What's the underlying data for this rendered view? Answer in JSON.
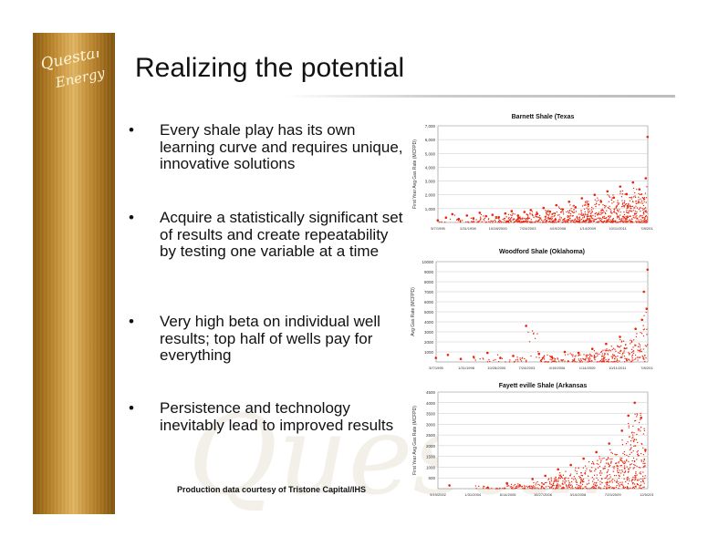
{
  "slide": {
    "title": "Realizing the potential",
    "logo_text": [
      "Questar",
      "Energy"
    ],
    "watermark": "Questar",
    "bullets": [
      {
        "symbol": "•",
        "text": "Every shale play has its own learning curve and requires unique, innovative solutions"
      },
      {
        "symbol": "•",
        "text": "Acquire a statistically significant set of results and create repeatability by testing one variable at a time"
      },
      {
        "symbol": "•",
        "text": "Very high beta on individual well results; top half of wells pay for everything"
      },
      {
        "symbol": "•",
        "text": "Persistence and technology inevitably lead to improved results"
      }
    ],
    "source": "Production data courtesy of Tristone Capital/IHS"
  },
  "colors": {
    "points": "#e8250c",
    "grid": "#c8c8c8",
    "sidebar_gold": "#c9953d"
  },
  "chart_data": [
    {
      "type": "scatter",
      "title": "Barnett   Shale (Texas",
      "xlabel": "",
      "ylabel": "First Year Avg Gas Rate (MCFPD)",
      "ylim": [
        0,
        7000
      ],
      "yticks": [
        "1,000",
        "2,000",
        "3,000",
        "4,000",
        "5,000",
        "6,000",
        "7,000"
      ],
      "xticks": [
        "5/7/1995",
        "1/31/1998",
        "10/28/2000",
        "7/24/2003",
        "4/19/2006",
        "1/14/2009",
        "10/11/2011",
        "7/8/2014"
      ],
      "grid": true,
      "legend": "none",
      "series": [
        {
          "points": [
            [
              "5/1995",
              150
            ],
            [
              "2/1996",
              350
            ],
            [
              "9/1996",
              600
            ],
            [
              "4/1997",
              250
            ],
            [
              "1/1998",
              500
            ],
            [
              "8/1998",
              300
            ],
            [
              "3/1999",
              700
            ],
            [
              "10/1999",
              450
            ],
            [
              "5/2000",
              550
            ],
            [
              "12/2000",
              380
            ],
            [
              "7/2001",
              650
            ],
            [
              "2/2002",
              820
            ],
            [
              "9/2002",
              500
            ],
            [
              "4/2003",
              760
            ],
            [
              "11/2003",
              900
            ],
            [
              "6/2004",
              620
            ],
            [
              "1/2005",
              1050
            ],
            [
              "8/2005",
              780
            ],
            [
              "3/2006",
              1250
            ],
            [
              "10/2006",
              950
            ],
            [
              "5/2007",
              1500
            ],
            [
              "12/2007",
              1100
            ],
            [
              "7/2008",
              1750
            ],
            [
              "2/2009",
              1300
            ],
            [
              "9/2009",
              2000
            ],
            [
              "4/2010",
              1500
            ],
            [
              "11/2010",
              2250
            ],
            [
              "6/2011",
              1800
            ],
            [
              "1/2012",
              2600
            ],
            [
              "8/2012",
              2050
            ],
            [
              "3/2013",
              2900
            ],
            [
              "10/2013",
              2400
            ],
            [
              "5/2014",
              3200
            ],
            [
              "7/2014",
              6200
            ]
          ]
        }
      ]
    },
    {
      "type": "scatter",
      "title": "Woodford Shale (Oklahoma)",
      "xlabel": "",
      "ylabel": "Avg Gas Rate (MCFPD)",
      "ylim": [
        0,
        10000
      ],
      "yticks": [
        "1000",
        "2000",
        "3000",
        "4000",
        "5000",
        "6000",
        "7000",
        "8000",
        "9000",
        "10000"
      ],
      "xticks": [
        "5/7/1995",
        "1/31/1998",
        "10/28/2000",
        "7/24/2003",
        "4/19/2006",
        "1/14/2009",
        "10/11/2011",
        "7/8/2014"
      ],
      "grid": true,
      "legend": "none",
      "series": [
        {
          "points": [
            [
              "5/1995",
              400
            ],
            [
              "6/1996",
              700
            ],
            [
              "8/1997",
              300
            ],
            [
              "10/1998",
              500
            ],
            [
              "1/2000",
              900
            ],
            [
              "3/2001",
              400
            ],
            [
              "5/2002",
              600
            ],
            [
              "7/2003",
              3600
            ],
            [
              "9/2004",
              800
            ],
            [
              "11/2005",
              500
            ],
            [
              "1/2007",
              1000
            ],
            [
              "4/2008",
              900
            ],
            [
              "7/2009",
              1300
            ],
            [
              "10/2010",
              1800
            ],
            [
              "1/2012",
              2500
            ],
            [
              "6/2013",
              3300
            ],
            [
              "1/2014",
              4200
            ],
            [
              "6/2014",
              5300
            ],
            [
              "3/2014",
              7000
            ],
            [
              "7/2014",
              9200
            ]
          ]
        }
      ]
    },
    {
      "type": "scatter",
      "title": "Fayett    eville Shale (Arkansas",
      "xlabel": "",
      "ylabel": "First Year Avg Gas Rate (MCFPD)",
      "ylim": [
        0,
        4500
      ],
      "yticks": [
        "500",
        "1000",
        "1500",
        "2000",
        "2500",
        "3000",
        "3500",
        "4000",
        "4500"
      ],
      "xticks": [
        "9/19/2002",
        "1/31/2004",
        "6/14/2005",
        "10/27/2006",
        "3/10/2008",
        "7/23/2009",
        "12/5/2010"
      ],
      "grid": true,
      "legend": "none",
      "series": [
        {
          "points": [
            [
              "3/2003",
              150
            ],
            [
              "9/2004",
              50
            ],
            [
              "6/2005",
              250
            ],
            [
              "12/2005",
              150
            ],
            [
              "6/2006",
              450
            ],
            [
              "12/2006",
              600
            ],
            [
              "6/2007",
              900
            ],
            [
              "12/2007",
              1100
            ],
            [
              "6/2008",
              1400
            ],
            [
              "12/2008",
              1700
            ],
            [
              "6/2009",
              2100
            ],
            [
              "12/2009",
              2700
            ],
            [
              "3/2010",
              3400
            ],
            [
              "6/2010",
              4000
            ],
            [
              "9/2010",
              3300
            ],
            [
              "11/2010",
              1800
            ]
          ]
        }
      ]
    }
  ]
}
